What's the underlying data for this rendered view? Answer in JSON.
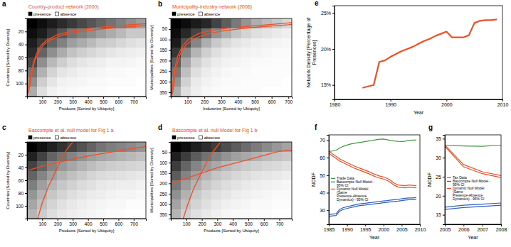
{
  "chart_data": [
    {
      "label": "a",
      "type": "heatmap",
      "title": "Country-product network (2000)",
      "x_label": "Products [Sorted by Ubiquity]",
      "y_label": "Countries [Sorted by Diversity]",
      "xlim": [
        0,
        780
      ],
      "ylim": [
        120,
        0
      ],
      "xticks": [
        100,
        200,
        300,
        400,
        500,
        600,
        700
      ],
      "yticks": [
        20,
        40,
        60,
        80,
        100
      ],
      "cell_legend": [
        {
          "name": "presence",
          "color": "#000000"
        },
        {
          "name": "absence",
          "color": "#ffffff"
        }
      ],
      "cells": [
        [
          0.9,
          0.85,
          0.8,
          0.75,
          0.7,
          0.65,
          0.6,
          0.55,
          0.5,
          0.45,
          0.4,
          0.35
        ],
        [
          0.85,
          0.8,
          0.7,
          0.6,
          0.5,
          0.45,
          0.4,
          0.35,
          0.3,
          0.25,
          0.2,
          0.2
        ],
        [
          0.8,
          0.7,
          0.55,
          0.45,
          0.35,
          0.3,
          0.25,
          0.2,
          0.18,
          0.15,
          0.12,
          0.1
        ],
        [
          0.75,
          0.55,
          0.4,
          0.3,
          0.22,
          0.18,
          0.15,
          0.12,
          0.1,
          0.08,
          0.07,
          0.06
        ],
        [
          0.65,
          0.4,
          0.25,
          0.18,
          0.13,
          0.1,
          0.08,
          0.07,
          0.05,
          0.05,
          0.04,
          0.03
        ],
        [
          0.5,
          0.28,
          0.16,
          0.1,
          0.08,
          0.06,
          0.05,
          0.04,
          0.03,
          0.03,
          0.02,
          0.02
        ],
        [
          0.4,
          0.18,
          0.1,
          0.06,
          0.05,
          0.04,
          0.03,
          0.03,
          0.02,
          0.02,
          0.02,
          0.01
        ],
        [
          0.3,
          0.12,
          0.06,
          0.04,
          0.03,
          0.02,
          0.02,
          0.02,
          0.01,
          0.01,
          0.01,
          0.01
        ]
      ],
      "series": [
        {
          "color": "#f04e23",
          "x": [
            5,
            20,
            40,
            60,
            90,
            130,
            200,
            300,
            450,
            600,
            780
          ],
          "values": [
            115,
            90,
            70,
            55,
            42,
            33,
            25,
            19,
            14,
            11,
            8
          ]
        },
        {
          "color": "#f04e23",
          "x": [
            10,
            30,
            50,
            80,
            110,
            160,
            240,
            350,
            500,
            650,
            780
          ],
          "values": [
            115,
            85,
            65,
            50,
            40,
            32,
            25,
            20,
            16,
            13,
            11
          ]
        }
      ]
    },
    {
      "label": "b",
      "type": "heatmap",
      "title": "Municipality-industry network (2006)",
      "x_label": "Industries [Sorted by Ubiquity]",
      "y_label": "Municipalities [Sorted by Diversity]",
      "xlim": [
        0,
        720
      ],
      "ylim": [
        370,
        0
      ],
      "xticks": [
        100,
        200,
        300,
        400,
        500,
        600,
        700
      ],
      "yticks": [
        50,
        100,
        150,
        200,
        250,
        300,
        350
      ],
      "cell_legend": [
        {
          "name": "presence",
          "color": "#000000"
        },
        {
          "name": "absence",
          "color": "#ffffff"
        }
      ],
      "cells": [
        [
          0.95,
          0.9,
          0.85,
          0.8,
          0.7,
          0.6,
          0.5,
          0.4,
          0.3,
          0.25,
          0.2,
          0.15
        ],
        [
          0.9,
          0.8,
          0.7,
          0.55,
          0.4,
          0.3,
          0.22,
          0.16,
          0.12,
          0.1,
          0.08,
          0.06
        ],
        [
          0.85,
          0.65,
          0.45,
          0.3,
          0.2,
          0.14,
          0.1,
          0.08,
          0.06,
          0.05,
          0.04,
          0.03
        ],
        [
          0.75,
          0.45,
          0.28,
          0.18,
          0.12,
          0.08,
          0.06,
          0.05,
          0.04,
          0.03,
          0.02,
          0.02
        ],
        [
          0.6,
          0.32,
          0.18,
          0.11,
          0.07,
          0.05,
          0.04,
          0.03,
          0.02,
          0.02,
          0.01,
          0.01
        ],
        [
          0.5,
          0.24,
          0.12,
          0.07,
          0.05,
          0.03,
          0.02,
          0.02,
          0.01,
          0.01,
          0.01,
          0.01
        ],
        [
          0.4,
          0.17,
          0.08,
          0.05,
          0.03,
          0.02,
          0.02,
          0.01,
          0.01,
          0.01,
          0.01,
          0.0
        ],
        [
          0.3,
          0.12,
          0.06,
          0.03,
          0.02,
          0.01,
          0.01,
          0.01,
          0.01,
          0.0,
          0.0,
          0.0
        ]
      ],
      "series": [
        {
          "color": "#f04e23",
          "x": [
            5,
            20,
            40,
            70,
            110,
            170,
            250,
            350,
            500,
            650,
            720
          ],
          "values": [
            360,
            250,
            180,
            130,
            95,
            70,
            55,
            45,
            35,
            25,
            20
          ]
        },
        {
          "color": "#f04e23",
          "x": [
            10,
            30,
            55,
            90,
            140,
            210,
            300,
            420,
            560,
            700,
            720
          ],
          "values": [
            360,
            240,
            170,
            125,
            95,
            75,
            60,
            48,
            38,
            30,
            28
          ]
        }
      ]
    },
    {
      "label": "c",
      "type": "heatmap",
      "title": "Bascompte et al. null model for Fig 1 a",
      "x_label": "Products [Sorted by Ubiquity]",
      "y_label": "Countries [Sorted by Diversity]",
      "xlim": [
        0,
        780
      ],
      "ylim": [
        120,
        0
      ],
      "xticks": [
        100,
        200,
        300,
        400,
        500,
        600,
        700
      ],
      "yticks": [
        20,
        40,
        60,
        80,
        100
      ],
      "cell_legend": [
        {
          "name": "presence",
          "color": "#000000"
        },
        {
          "name": "absence",
          "color": "#ffffff"
        }
      ],
      "cells": [
        [
          0.8,
          0.75,
          0.7,
          0.65,
          0.6,
          0.55,
          0.5,
          0.45,
          0.42,
          0.4,
          0.38,
          0.35
        ],
        [
          0.7,
          0.6,
          0.5,
          0.45,
          0.4,
          0.36,
          0.32,
          0.3,
          0.28,
          0.26,
          0.24,
          0.22
        ],
        [
          0.6,
          0.5,
          0.4,
          0.34,
          0.3,
          0.26,
          0.23,
          0.2,
          0.18,
          0.17,
          0.16,
          0.15
        ],
        [
          0.5,
          0.4,
          0.32,
          0.26,
          0.22,
          0.19,
          0.16,
          0.14,
          0.13,
          0.12,
          0.11,
          0.1
        ],
        [
          0.42,
          0.32,
          0.25,
          0.2,
          0.17,
          0.14,
          0.12,
          0.1,
          0.09,
          0.08,
          0.08,
          0.07
        ],
        [
          0.35,
          0.26,
          0.2,
          0.16,
          0.13,
          0.11,
          0.09,
          0.08,
          0.07,
          0.06,
          0.06,
          0.05
        ],
        [
          0.3,
          0.22,
          0.16,
          0.12,
          0.1,
          0.08,
          0.07,
          0.06,
          0.05,
          0.05,
          0.04,
          0.04
        ],
        [
          0.25,
          0.18,
          0.13,
          0.1,
          0.08,
          0.07,
          0.06,
          0.05,
          0.04,
          0.04,
          0.03,
          0.03
        ]
      ],
      "series": [
        {
          "color": "#f04e23",
          "x": [
            70,
            100,
            140,
            180,
            220,
            260,
            300
          ],
          "values": [
            120,
            95,
            70,
            50,
            30,
            12,
            0
          ]
        },
        {
          "color": "#f04e23",
          "x": [
            0,
            100,
            200,
            300,
            400,
            500,
            600,
            700,
            780
          ],
          "values": [
            45,
            38,
            32,
            27,
            22,
            18,
            14,
            10,
            7
          ]
        }
      ]
    },
    {
      "label": "d",
      "type": "heatmap",
      "title": "Bascompte et al. null Model for Fig 1 b",
      "x_label": "Products [Sorted by Ubiquity]",
      "y_label": "Municipalities [Sorted by Diversity]",
      "xlim": [
        0,
        780
      ],
      "ylim": [
        370,
        0
      ],
      "xticks": [
        100,
        200,
        300,
        400,
        500,
        600,
        700
      ],
      "yticks": [
        50,
        100,
        150,
        200,
        250,
        300,
        350
      ],
      "cell_legend": [
        {
          "name": "presence",
          "color": "#000000"
        },
        {
          "name": "absence",
          "color": "#ffffff"
        }
      ],
      "cells": [
        [
          0.85,
          0.8,
          0.75,
          0.7,
          0.65,
          0.6,
          0.55,
          0.5,
          0.45,
          0.4,
          0.36,
          0.32
        ],
        [
          0.75,
          0.65,
          0.55,
          0.48,
          0.42,
          0.37,
          0.33,
          0.3,
          0.27,
          0.24,
          0.22,
          0.2
        ],
        [
          0.65,
          0.52,
          0.42,
          0.35,
          0.3,
          0.25,
          0.22,
          0.19,
          0.17,
          0.15,
          0.14,
          0.12
        ],
        [
          0.55,
          0.42,
          0.33,
          0.26,
          0.21,
          0.18,
          0.15,
          0.13,
          0.11,
          0.1,
          0.09,
          0.08
        ],
        [
          0.46,
          0.34,
          0.26,
          0.2,
          0.16,
          0.13,
          0.11,
          0.09,
          0.08,
          0.07,
          0.06,
          0.05
        ],
        [
          0.38,
          0.27,
          0.2,
          0.15,
          0.12,
          0.1,
          0.08,
          0.07,
          0.06,
          0.05,
          0.04,
          0.04
        ],
        [
          0.32,
          0.22,
          0.16,
          0.12,
          0.09,
          0.07,
          0.06,
          0.05,
          0.04,
          0.04,
          0.03,
          0.03
        ],
        [
          0.26,
          0.17,
          0.12,
          0.09,
          0.07,
          0.05,
          0.04,
          0.04,
          0.03,
          0.03,
          0.02,
          0.02
        ]
      ],
      "series": [
        {
          "color": "#f04e23",
          "x": [
            80,
            110,
            150,
            190,
            230,
            270,
            320
          ],
          "values": [
            370,
            300,
            220,
            160,
            100,
            50,
            0
          ]
        },
        {
          "color": "#f04e23",
          "x": [
            0,
            100,
            200,
            300,
            400,
            500,
            600,
            700,
            780
          ],
          "values": [
            200,
            175,
            150,
            125,
            105,
            85,
            65,
            45,
            40
          ]
        }
      ]
    },
    {
      "label": "e",
      "type": "line",
      "x_label": "Year",
      "y_label": "Network Density [Percentage of Presences]",
      "x": [
        1985,
        1986,
        1987,
        1988,
        1989,
        1990,
        1991,
        1992,
        1993,
        1994,
        1995,
        1996,
        1997,
        1998,
        1999,
        2000,
        2001,
        2002,
        2003,
        2004,
        2005,
        2006,
        2007,
        2008,
        2009
      ],
      "xlim": [
        1980,
        2010
      ],
      "xticks": [
        1980,
        1990,
        2000,
        2010
      ],
      "ylim": [
        13,
        26
      ],
      "yticks": [
        {
          "value": 15,
          "label": "15%"
        },
        {
          "value": 20,
          "label": "20%"
        },
        {
          "value": 25,
          "label": "25%"
        }
      ],
      "series": [
        {
          "color": "#f04e23",
          "values": [
            14.6,
            14.8,
            15.0,
            18.2,
            18.4,
            18.9,
            19.3,
            19.7,
            20.0,
            20.3,
            20.7,
            21.1,
            21.4,
            21.8,
            22.1,
            22.4,
            21.6,
            21.6,
            21.6,
            21.9,
            23.6,
            23.9,
            24.0,
            24.0,
            24.1
          ]
        }
      ]
    },
    {
      "label": "f",
      "type": "line",
      "x_label": "Year",
      "y_label": "NODF",
      "legend": "left",
      "x": [
        1985,
        1986,
        1987,
        1988,
        1989,
        1990,
        1991,
        1992,
        1993,
        1994,
        1995,
        1996,
        1997,
        1998,
        1999,
        2000,
        2001,
        2002,
        2003,
        2004,
        2005,
        2006,
        2007,
        2008,
        2009
      ],
      "xlim": [
        1985,
        2010
      ],
      "xticks": [
        1985,
        1990,
        1995,
        2000,
        2005,
        2010
      ],
      "ylim": [
        22,
        73
      ],
      "yticks": [
        30,
        40,
        50,
        60,
        70
      ],
      "series": [
        {
          "name": "Trade Data",
          "color": "#3c9a3c",
          "values": [
            63.5,
            63.8,
            64.2,
            65.5,
            66.5,
            67.2,
            67.8,
            68.2,
            68.5,
            68.8,
            69.2,
            69.5,
            69.8,
            70.2,
            70.5,
            70.6,
            70.2,
            69.8,
            69.5,
            69.3,
            69.2,
            69.4,
            69.8,
            70.0,
            70.0
          ]
        },
        {
          "name": "Bascompte Null Model - 95% CI",
          "color": "#2f5fc0",
          "values": [
            26.5,
            26.8,
            27.0,
            29.5,
            30.5,
            31.0,
            31.5,
            32.0,
            32.5,
            32.8,
            33.0,
            33.3,
            33.5,
            33.8,
            34.0,
            34.3,
            34.5,
            34.8,
            35.0,
            35.2,
            35.5,
            35.8,
            36.0,
            36.0,
            36.2
          ],
          "upper": [
            27.5,
            27.8,
            28.0,
            30.5,
            31.5,
            32.0,
            32.5,
            33.0,
            33.5,
            33.8,
            34.0,
            34.3,
            34.5,
            34.8,
            35.0,
            35.3,
            35.5,
            35.8,
            36.0,
            36.2,
            36.5,
            36.8,
            37.0,
            37.0,
            37.2
          ]
        },
        {
          "name": "Dynamic Null Model (Same Presence-Absence Dynamics) - 95% CI",
          "color": "#f04e23",
          "values": [
            62.5,
            61.0,
            59.5,
            58.0,
            57.0,
            56.0,
            55.0,
            54.0,
            53.2,
            52.4,
            51.6,
            50.8,
            49.8,
            49.0,
            48.3,
            47.8,
            47.0,
            45.8,
            44.2,
            43.2,
            43.0,
            42.8,
            43.2,
            43.0,
            42.8
          ],
          "upper": [
            63.7,
            62.2,
            60.7,
            59.2,
            58.2,
            57.2,
            56.2,
            55.2,
            54.4,
            53.6,
            52.8,
            52.0,
            51.0,
            50.2,
            49.5,
            49.0,
            48.2,
            47.0,
            45.4,
            44.4,
            44.2,
            44.0,
            44.4,
            44.2,
            44.0
          ]
        }
      ]
    },
    {
      "label": "g",
      "type": "line",
      "x_label": "Year",
      "y_label": "NODF",
      "legend": "left",
      "x": [
        2005,
        2006,
        2007,
        2008
      ],
      "xlim": [
        2005,
        2008
      ],
      "xticks": [
        2005,
        2006,
        2007,
        2008
      ],
      "ylim": [
        12.5,
        36
      ],
      "yticks": [
        15,
        20,
        25,
        30,
        35
      ],
      "series": [
        {
          "name": "Tax Data",
          "color": "#3c9a3c",
          "values": [
            33.2,
            33.1,
            33.0,
            33.3
          ]
        },
        {
          "name": "Bascompte Null Model - 95% CI",
          "color": "#2f5fc0",
          "values": [
            16.4,
            16.9,
            17.2,
            17.5
          ],
          "upper": [
            17.0,
            17.5,
            17.8,
            18.1
          ]
        },
        {
          "name": "Dynamic Null Model (Same Presence-Absence Dynamics) - 95% CI",
          "color": "#f04e23",
          "values": [
            33.0,
            27.6,
            25.8,
            24.8
          ],
          "upper": [
            33.3,
            28.2,
            26.3,
            25.3
          ]
        }
      ]
    }
  ]
}
